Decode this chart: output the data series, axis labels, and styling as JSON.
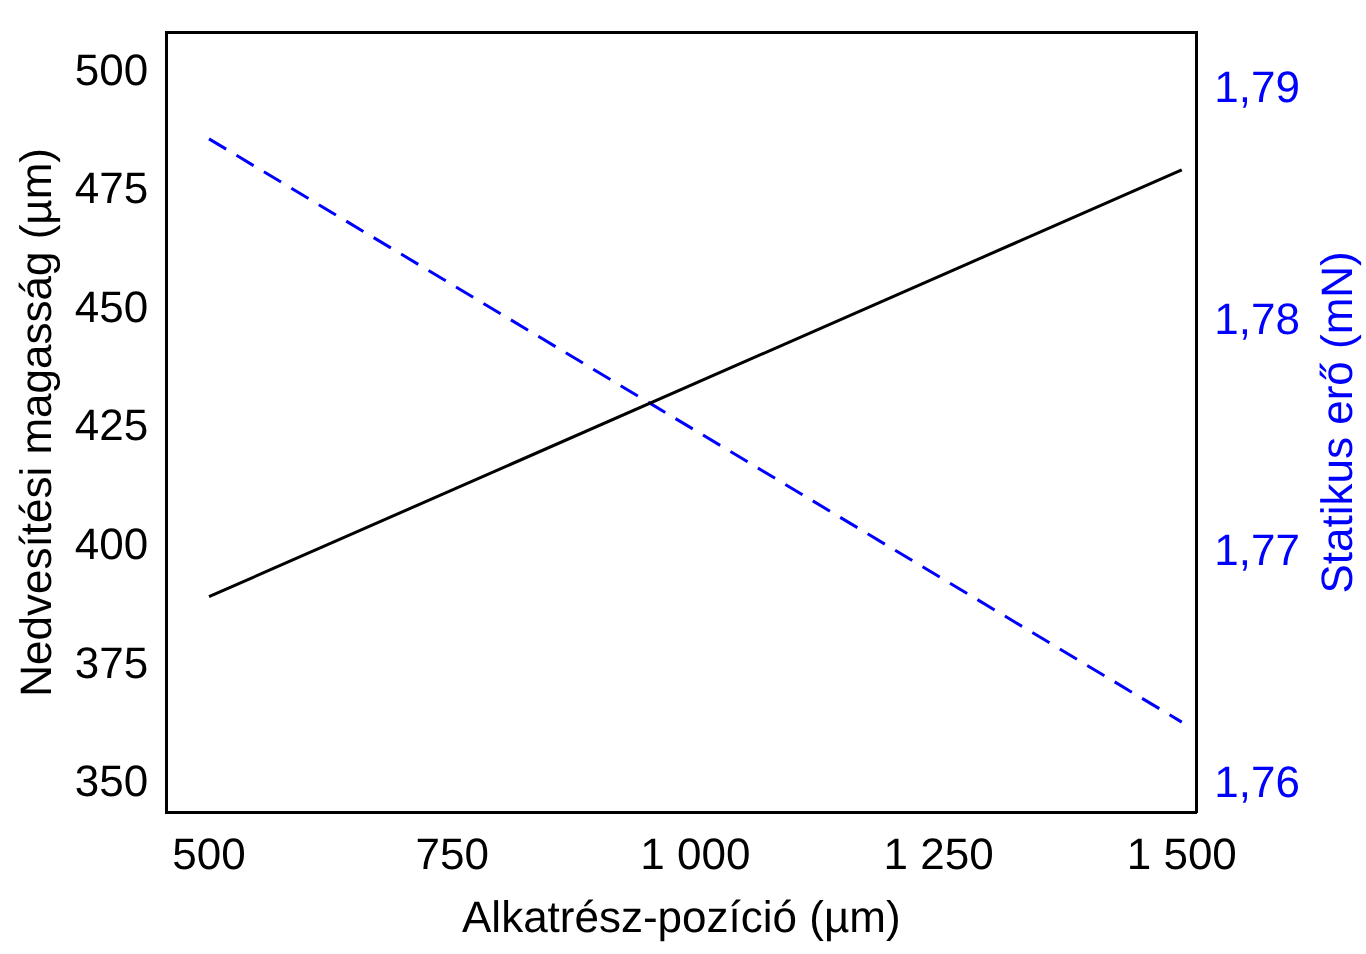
{
  "chart_data": {
    "type": "line",
    "xlabel": "Alkatrész-pozíció (µm)",
    "ylabel": "Nedvesítési magasság (µm)",
    "y2label": "Statikus erő (mN)",
    "x": [
      500,
      1500
    ],
    "series": [
      {
        "color": "#000000",
        "values": [
          389.5,
          479.5
        ],
        "line_style": "solid"
      },
      {
        "color": "#0000ff",
        "values": [
          1.7879,
          1.7627
        ],
        "axis": "y2",
        "line_style": "dashed"
      }
    ],
    "xlim": [
      456,
      1515
    ],
    "xticks": [
      500,
      750,
      {
        "value": 1000,
        "label": "1 000"
      },
      {
        "value": 1250,
        "label": "1 250"
      },
      {
        "value": 1500,
        "label": "1 500"
      }
    ],
    "ylim": [
      344,
      508.5
    ],
    "yticks": [
      350,
      375,
      400,
      425,
      450,
      475,
      500
    ],
    "y2lim": [
      1.7588,
      1.7925
    ],
    "y2ticks": [
      {
        "value": 1.76,
        "label": "1,76"
      },
      {
        "value": 1.77,
        "label": "1,77"
      },
      {
        "value": 1.78,
        "label": "1,78"
      },
      {
        "value": 1.79,
        "label": "1,79"
      }
    ],
    "grid": false,
    "legend": false,
    "marker": "none"
  }
}
